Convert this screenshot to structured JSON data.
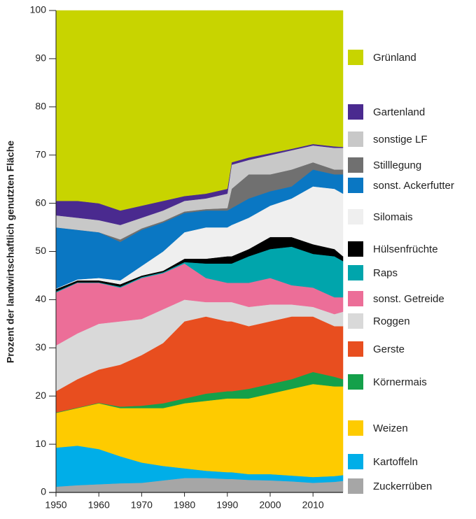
{
  "chart_data": {
    "type": "stacked_area",
    "y_label": "Prozent der landwirtschaftlich genutzten Fläche",
    "x": [
      1950,
      1955,
      1960,
      1965,
      1970,
      1975,
      1980,
      1985,
      1990,
      1991,
      1995,
      2000,
      2005,
      2010,
      2015,
      2017
    ],
    "xlim": [
      1950,
      2017
    ],
    "xticks": [
      1950,
      1960,
      1970,
      1980,
      1990,
      2000,
      2010
    ],
    "ylim": [
      0,
      100
    ],
    "yticks": [
      0,
      10,
      20,
      30,
      40,
      50,
      60,
      70,
      80,
      90,
      100
    ],
    "legend": "right",
    "series": [
      {
        "name": "Zuckerrüben",
        "color": "#a6a6a6",
        "values": [
          1.2,
          1.5,
          1.7,
          1.9,
          2,
          2.5,
          3,
          3,
          2.8,
          2.8,
          2.6,
          2.5,
          2.3,
          2,
          2.2,
          2.4
        ]
      },
      {
        "name": "Kartoffeln",
        "color": "#00aee8",
        "values": [
          8.1,
          8.2,
          7.3,
          5.6,
          4.2,
          3,
          2,
          1.5,
          1.4,
          1.4,
          1.2,
          1.3,
          1.2,
          1.2,
          1.2,
          1.2
        ]
      },
      {
        "name": "Weizen",
        "color": "#fecb00",
        "values": [
          7.2,
          7.8,
          9.5,
          10,
          11.3,
          12,
          13.5,
          14.5,
          15.3,
          15.3,
          15.7,
          16.7,
          18,
          19.3,
          18.6,
          18.4
        ]
      },
      {
        "name": "Körnermais",
        "color": "#14a04a",
        "values": [
          0.1,
          0.1,
          0.1,
          0.3,
          0.5,
          1,
          1,
          1.5,
          1.5,
          1.5,
          2,
          2,
          2,
          2.5,
          2,
          1.5
        ]
      },
      {
        "name": "Gerste",
        "color": "#e84e1f",
        "values": [
          4.4,
          5.9,
          6.9,
          8.7,
          10.5,
          12.5,
          16,
          16,
          14.5,
          14.5,
          13,
          13,
          13,
          11.5,
          10.5,
          11
        ]
      },
      {
        "name": "Roggen",
        "color": "#d9d9d9",
        "values": [
          9.5,
          9.5,
          9.5,
          9,
          7.5,
          7,
          4.5,
          3,
          4,
          4,
          4,
          3.5,
          2.5,
          2,
          2.5,
          3
        ]
      },
      {
        "name": "sonst. Getreide",
        "color": "#ec6e98",
        "values": [
          11,
          10.5,
          8.5,
          7,
          8.5,
          7.5,
          7.5,
          5,
          4,
          4,
          5,
          5.5,
          4,
          4,
          3.5,
          3
        ]
      },
      {
        "name": "Raps",
        "color": "#00a5ac",
        "values": [
          0.2,
          0.1,
          0.1,
          0.2,
          0.2,
          0.2,
          0.3,
          3,
          4,
          4,
          5.5,
          6,
          8,
          7,
          8.5,
          7.5
        ]
      },
      {
        "name": "Hülsenfrüchte",
        "color": "#000000",
        "values": [
          0.5,
          0.4,
          0.4,
          0.5,
          0.3,
          0.3,
          0.7,
          1,
          1.5,
          1.5,
          1.5,
          2.5,
          2,
          2,
          1.5,
          1
        ]
      },
      {
        "name": "Silomais",
        "color": "#efefef",
        "values": [
          0.1,
          0.2,
          0.5,
          0.8,
          2,
          4,
          5.5,
          6.5,
          6,
          6.5,
          6.5,
          6.5,
          8,
          12,
          12.5,
          13
        ]
      },
      {
        "name": "sonst. Ackerfutter",
        "color": "#0a77c3",
        "values": [
          12.7,
          10.3,
          9.5,
          8,
          7.5,
          6,
          4,
          3.5,
          3.5,
          3.5,
          4,
          3,
          2.5,
          3.5,
          3,
          4
        ]
      },
      {
        "name": "Stilllegung",
        "color": "#707070",
        "values": [
          0,
          0,
          0,
          0.5,
          0.3,
          0.3,
          0.3,
          0.3,
          0.5,
          4,
          5,
          3.5,
          3.5,
          1.5,
          1,
          1
        ]
      },
      {
        "name": "sonstige LF",
        "color": "#c8c8c8",
        "values": [
          2.5,
          2.5,
          2.5,
          3,
          2.2,
          2.2,
          2.2,
          2.2,
          3,
          5,
          3,
          4,
          4,
          3.5,
          4.5,
          4.5
        ]
      },
      {
        "name": "Gartenland",
        "color": "#4a2a8f",
        "values": [
          3,
          3.5,
          3.5,
          3,
          2.5,
          2,
          1,
          1,
          1,
          0.5,
          0.5,
          0.4,
          0.3,
          0.3,
          0.3,
          0.2
        ]
      },
      {
        "name": "Grünland",
        "color": "#c8d400",
        "values": [
          39.5,
          39.5,
          40,
          41.5,
          40.5,
          39.5,
          38.5,
          38,
          37,
          31.5,
          30.5,
          29.6,
          28.7,
          27.7,
          28.2,
          28.3
        ]
      }
    ]
  }
}
